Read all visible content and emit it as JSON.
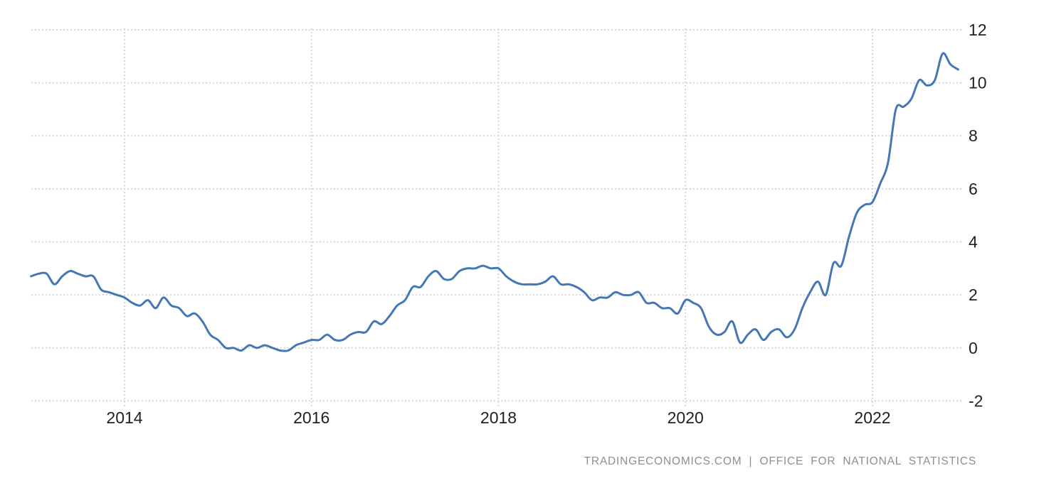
{
  "chart_data": {
    "type": "line",
    "grid": "dotted",
    "legend": "none",
    "y_axis": {
      "side": "right",
      "tick_labels": [
        "12",
        "10",
        "8",
        "6",
        "4",
        "2",
        "0",
        "-2"
      ],
      "tick_values": [
        12,
        10,
        8,
        6,
        4,
        2,
        0,
        -2
      ],
      "range": [
        -2,
        12
      ]
    },
    "x_axis": {
      "tick_labels": [
        "2014",
        "2016",
        "2018",
        "2020",
        "2022"
      ],
      "tick_years": [
        2014,
        2016,
        2018,
        2020,
        2022
      ]
    },
    "colors": {
      "line": "#4577b4",
      "grid": "#d7d7d7",
      "axis_text": "#212121",
      "footer_text": "#8f8f8f"
    },
    "series": [
      {
        "name": "series-1",
        "start": {
          "year": 2013,
          "month": 1
        },
        "frequency": "monthly",
        "values": [
          2.7,
          2.8,
          2.8,
          2.4,
          2.7,
          2.9,
          2.8,
          2.7,
          2.7,
          2.2,
          2.1,
          2.0,
          1.9,
          1.7,
          1.6,
          1.8,
          1.5,
          1.9,
          1.6,
          1.5,
          1.2,
          1.3,
          1.0,
          0.5,
          0.3,
          0.0,
          0.0,
          -0.1,
          0.1,
          0.0,
          0.1,
          0.0,
          -0.1,
          -0.1,
          0.1,
          0.2,
          0.3,
          0.3,
          0.5,
          0.3,
          0.3,
          0.5,
          0.6,
          0.6,
          1.0,
          0.9,
          1.2,
          1.6,
          1.8,
          2.3,
          2.3,
          2.7,
          2.9,
          2.6,
          2.6,
          2.9,
          3.0,
          3.0,
          3.1,
          3.0,
          3.0,
          2.7,
          2.5,
          2.4,
          2.4,
          2.4,
          2.5,
          2.7,
          2.4,
          2.4,
          2.3,
          2.1,
          1.8,
          1.9,
          1.9,
          2.1,
          2.0,
          2.0,
          2.1,
          1.7,
          1.7,
          1.5,
          1.5,
          1.3,
          1.8,
          1.7,
          1.5,
          0.8,
          0.5,
          0.6,
          1.0,
          0.2,
          0.5,
          0.7,
          0.3,
          0.6,
          0.7,
          0.4,
          0.7,
          1.5,
          2.1,
          2.5,
          2.0,
          3.2,
          3.1,
          4.2,
          5.1,
          5.4,
          5.5,
          6.2,
          7.0,
          9.0,
          9.1,
          9.4,
          10.1,
          9.9,
          10.1,
          11.1,
          10.7,
          10.5
        ]
      }
    ]
  },
  "footer": {
    "attribution": "TRADINGECONOMICS.COM | OFFICE FOR NATIONAL STATISTICS"
  }
}
